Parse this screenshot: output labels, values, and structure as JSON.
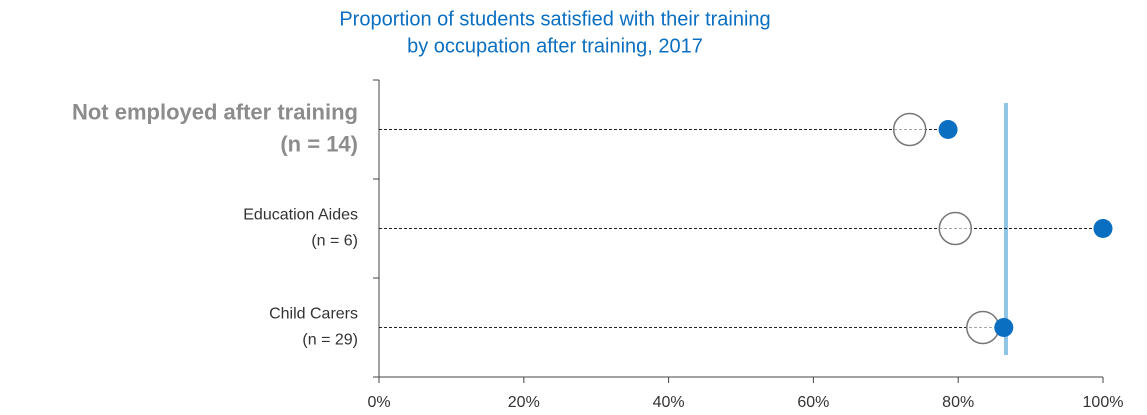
{
  "chart_data": {
    "type": "dot",
    "title": [
      "Proportion of students satisfied with their training",
      "by occupation after training, 2017"
    ],
    "categories": [
      "Not employed after training",
      "Education Aides",
      "Child Carers"
    ],
    "category_notes": [
      "(n = 14)",
      "(n = 6)",
      "(n = 29)"
    ],
    "highlight_category": 0,
    "series": [
      {
        "style": "open",
        "color": "#777777",
        "values": [
          73.3,
          79.6,
          83.4
        ]
      },
      {
        "style": "filled",
        "color": "#0b6fc1",
        "values": [
          78.6,
          100,
          86.3
        ]
      }
    ],
    "reference_line": {
      "value": 86.6,
      "color": "#8ec4e6"
    },
    "xlim": [
      0,
      100
    ],
    "xticks": [
      {
        "value": 0,
        "label": "0%"
      },
      {
        "value": 20,
        "label": "20%"
      },
      {
        "value": 40,
        "label": "40%"
      },
      {
        "value": 60,
        "label": "60%"
      },
      {
        "value": 80,
        "label": "80%"
      },
      {
        "value": 100,
        "label": "100%"
      }
    ],
    "title_color": "#0b6fc1"
  }
}
